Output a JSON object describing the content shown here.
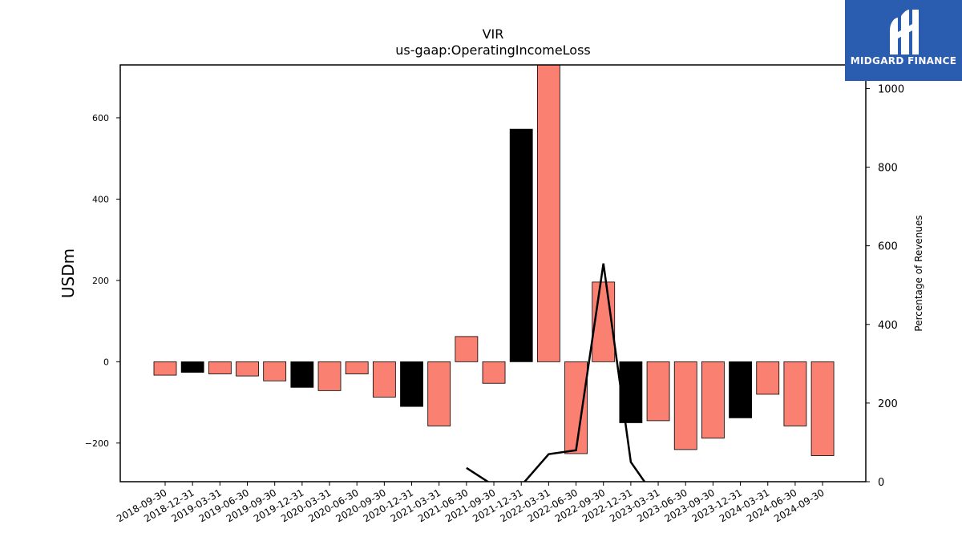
{
  "chart_data": {
    "type": "bar",
    "title": "VIR",
    "subtitle": "us-gaap:OperatingIncomeLoss",
    "ylabel": "USDm",
    "ylabel_right": "Percentage of Revenues",
    "ylim": [
      -295,
      730
    ],
    "ylim_right": [
      0,
      1060
    ],
    "yticks": [
      -200,
      0,
      200,
      400,
      600
    ],
    "yticks_right": [
      0,
      200,
      400,
      600,
      800,
      1000
    ],
    "categories": [
      "2018-09-30",
      "2018-12-31",
      "2019-03-31",
      "2019-06-30",
      "2019-09-30",
      "2019-12-31",
      "2020-03-31",
      "2020-06-30",
      "2020-09-30",
      "2020-12-31",
      "2021-03-31",
      "2021-06-30",
      "2021-09-30",
      "2021-12-31",
      "2022-03-31",
      "2022-06-30",
      "2022-09-30",
      "2022-12-31",
      "2023-03-31",
      "2023-06-30",
      "2023-09-30",
      "2023-12-31",
      "2024-03-31",
      "2024-06-30",
      "2024-09-30"
    ],
    "values": [
      -33,
      -26,
      -30,
      -35,
      -47,
      -63,
      -71,
      -30,
      -87,
      -110,
      -158,
      62,
      -53,
      572,
      740,
      -226,
      196,
      -150,
      -145,
      -216,
      -188,
      -138,
      -80,
      -158,
      -231
    ],
    "bar_colors": [
      "#fa8072",
      "#000000",
      "#fa8072",
      "#fa8072",
      "#fa8072",
      "#000000",
      "#fa8072",
      "#fa8072",
      "#fa8072",
      "#000000",
      "#fa8072",
      "#fa8072",
      "#fa8072",
      "#000000",
      "#fa8072",
      "#fa8072",
      "#fa8072",
      "#000000",
      "#fa8072",
      "#fa8072",
      "#fa8072",
      "#000000",
      "#fa8072",
      "#fa8072",
      "#fa8072"
    ],
    "line_series": {
      "values": [
        null,
        null,
        null,
        null,
        null,
        null,
        null,
        null,
        null,
        null,
        null,
        35,
        -10,
        -10,
        70,
        80,
        555,
        50,
        -50,
        null,
        null,
        null,
        null,
        null,
        null
      ],
      "color": "#000000"
    },
    "colors": {
      "salmon": "#fa8072",
      "black": "#000000"
    }
  },
  "logo": {
    "text": "MIDGARD FINANCE",
    "background": "#2a5db0"
  }
}
